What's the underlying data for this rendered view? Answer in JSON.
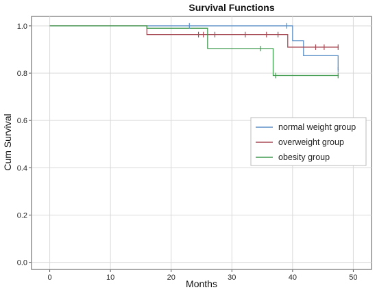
{
  "chart_data": {
    "type": "line",
    "step": true,
    "title": "Survival Functions",
    "xlabel": "Months",
    "ylabel": "Cum Survival",
    "xlim": [
      -3,
      53
    ],
    "ylim": [
      -0.03,
      1.04
    ],
    "xticks": [
      0,
      10,
      20,
      30,
      40,
      50
    ],
    "yticks": [
      0.0,
      0.2,
      0.4,
      0.6,
      0.8,
      1.0
    ],
    "xtick_labels": [
      "0",
      "10",
      "20",
      "30",
      "40",
      "50"
    ],
    "ytick_labels": [
      "0.0",
      "0.2",
      "0.4",
      "0.6",
      "0.8",
      "1.0"
    ],
    "grid": true,
    "legend_position": "right-center",
    "series": [
      {
        "name": "normal weight group",
        "color": "#5b8fc7",
        "steps": [
          [
            0,
            1.0
          ],
          [
            40,
            0.937
          ],
          [
            41.8,
            0.874
          ],
          [
            47.5,
            0.815
          ]
        ],
        "end_x": 47.6,
        "censored": [
          [
            23,
            1.0
          ],
          [
            39,
            1.0
          ],
          [
            47.5,
            0.815
          ]
        ]
      },
      {
        "name": "overweight group",
        "color": "#a84a55",
        "steps": [
          [
            0,
            1.0
          ],
          [
            16,
            0.963
          ],
          [
            39.2,
            0.91
          ]
        ],
        "end_x": 47.6,
        "censored": [
          [
            24.5,
            0.963
          ],
          [
            25.3,
            0.963
          ],
          [
            27.2,
            0.963
          ],
          [
            32.2,
            0.963
          ],
          [
            35.7,
            0.963
          ],
          [
            37.6,
            0.963
          ],
          [
            43.8,
            0.91
          ],
          [
            45.2,
            0.91
          ],
          [
            47.5,
            0.91
          ]
        ]
      },
      {
        "name": "obesity group",
        "color": "#3f9a4e",
        "steps": [
          [
            0,
            1.0
          ],
          [
            16,
            0.99
          ],
          [
            26,
            0.904
          ],
          [
            36.8,
            0.79
          ]
        ],
        "end_x": 47.6,
        "censored": [
          [
            34.7,
            0.904
          ],
          [
            37.2,
            0.79
          ],
          [
            47.5,
            0.79
          ]
        ]
      }
    ]
  }
}
